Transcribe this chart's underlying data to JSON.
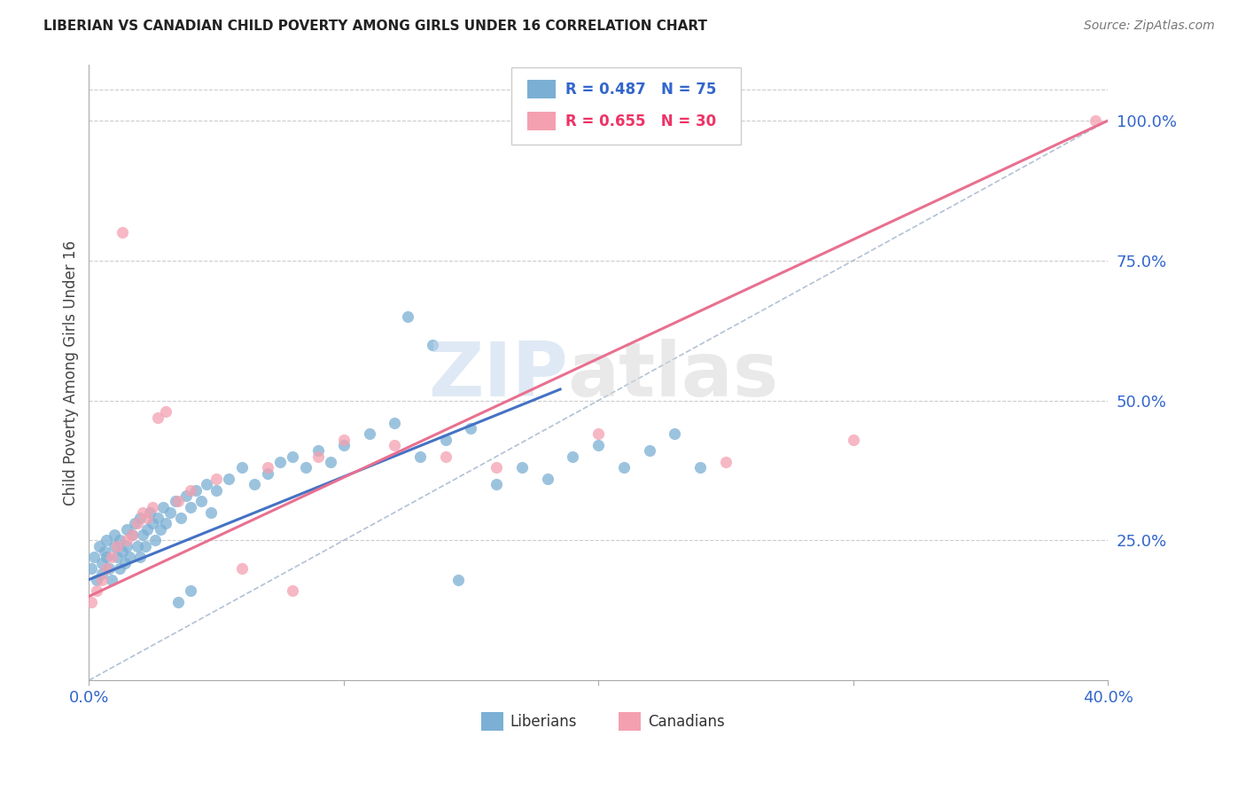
{
  "title": "LIBERIAN VS CANADIAN CHILD POVERTY AMONG GIRLS UNDER 16 CORRELATION CHART",
  "source": "Source: ZipAtlas.com",
  "ylabel": "Child Poverty Among Girls Under 16",
  "xlim": [
    0.0,
    0.4
  ],
  "ylim": [
    0.0,
    1.1
  ],
  "x_tick_positions": [
    0.0,
    0.1,
    0.2,
    0.3,
    0.4
  ],
  "x_tick_labels": [
    "0.0%",
    "",
    "",
    "",
    "40.0%"
  ],
  "y_ticks_right": [
    0.25,
    0.5,
    0.75,
    1.0
  ],
  "y_tick_labels_right": [
    "25.0%",
    "50.0%",
    "75.0%",
    "100.0%"
  ],
  "liberian_color": "#7BAFD4",
  "canadian_color": "#F4A0B0",
  "liberian_line_color": "#4472C4",
  "canadian_line_color": "#E87090",
  "diag_color": "#AABBD0",
  "liberian_R": 0.487,
  "liberian_N": 75,
  "canadian_R": 0.655,
  "canadian_N": 30,
  "legend_lib_color": "#3366CC",
  "legend_can_color": "#EE3366",
  "watermark_zip_color": "#C5D8EE",
  "watermark_atlas_color": "#D8D8D8",
  "lib_x": [
    0.001,
    0.002,
    0.003,
    0.004,
    0.005,
    0.005,
    0.006,
    0.007,
    0.007,
    0.008,
    0.009,
    0.01,
    0.01,
    0.011,
    0.012,
    0.012,
    0.013,
    0.014,
    0.015,
    0.015,
    0.016,
    0.017,
    0.018,
    0.019,
    0.02,
    0.02,
    0.021,
    0.022,
    0.023,
    0.024,
    0.025,
    0.026,
    0.027,
    0.028,
    0.029,
    0.03,
    0.032,
    0.034,
    0.036,
    0.038,
    0.04,
    0.042,
    0.044,
    0.046,
    0.048,
    0.05,
    0.055,
    0.06,
    0.065,
    0.07,
    0.075,
    0.08,
    0.085,
    0.09,
    0.095,
    0.1,
    0.11,
    0.12,
    0.13,
    0.14,
    0.15,
    0.16,
    0.17,
    0.18,
    0.19,
    0.2,
    0.21,
    0.22,
    0.23,
    0.24,
    0.125,
    0.135,
    0.145,
    0.035,
    0.04
  ],
  "lib_y": [
    0.2,
    0.22,
    0.18,
    0.24,
    0.21,
    0.19,
    0.23,
    0.25,
    0.22,
    0.2,
    0.18,
    0.24,
    0.26,
    0.22,
    0.2,
    0.25,
    0.23,
    0.21,
    0.27,
    0.24,
    0.22,
    0.26,
    0.28,
    0.24,
    0.22,
    0.29,
    0.26,
    0.24,
    0.27,
    0.3,
    0.28,
    0.25,
    0.29,
    0.27,
    0.31,
    0.28,
    0.3,
    0.32,
    0.29,
    0.33,
    0.31,
    0.34,
    0.32,
    0.35,
    0.3,
    0.34,
    0.36,
    0.38,
    0.35,
    0.37,
    0.39,
    0.4,
    0.38,
    0.41,
    0.39,
    0.42,
    0.44,
    0.46,
    0.4,
    0.43,
    0.45,
    0.35,
    0.38,
    0.36,
    0.4,
    0.42,
    0.38,
    0.41,
    0.44,
    0.38,
    0.65,
    0.6,
    0.18,
    0.14,
    0.16
  ],
  "can_x": [
    0.001,
    0.003,
    0.005,
    0.007,
    0.009,
    0.011,
    0.013,
    0.015,
    0.017,
    0.019,
    0.021,
    0.023,
    0.025,
    0.027,
    0.03,
    0.035,
    0.04,
    0.05,
    0.06,
    0.07,
    0.08,
    0.09,
    0.1,
    0.12,
    0.14,
    0.16,
    0.2,
    0.25,
    0.3,
    0.395
  ],
  "can_y": [
    0.14,
    0.16,
    0.18,
    0.2,
    0.22,
    0.24,
    0.8,
    0.25,
    0.26,
    0.28,
    0.3,
    0.29,
    0.31,
    0.47,
    0.48,
    0.32,
    0.34,
    0.36,
    0.2,
    0.38,
    0.16,
    0.4,
    0.43,
    0.42,
    0.4,
    0.38,
    0.44,
    0.39,
    0.43,
    1.0
  ]
}
